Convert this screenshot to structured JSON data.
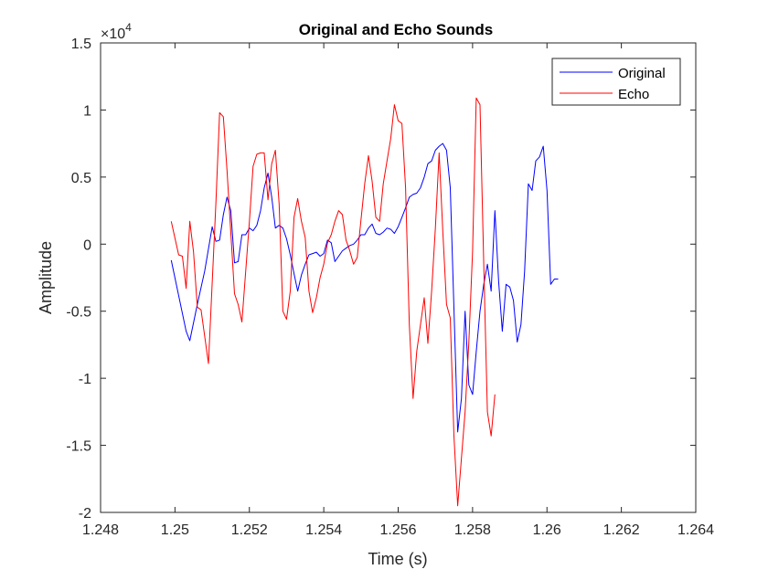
{
  "chart_data": {
    "type": "line",
    "title": "Original and Echo Sounds",
    "xlabel": "Time (s)",
    "ylabel": "Amplitude",
    "xlim": [
      1.248,
      1.264
    ],
    "ylim": [
      -20000,
      15000
    ],
    "y_exponent_label": "×10",
    "y_exponent_power": "4",
    "x_ticks": [
      1.248,
      1.25,
      1.252,
      1.254,
      1.256,
      1.258,
      1.26,
      1.262,
      1.264
    ],
    "x_tick_labels": [
      "1.248",
      "1.25",
      "1.252",
      "1.254",
      "1.256",
      "1.258",
      "1.26",
      "1.262",
      "1.264"
    ],
    "y_ticks": [
      -20000,
      -15000,
      -10000,
      -5000,
      0,
      5000,
      10000,
      15000
    ],
    "y_tick_labels": [
      "-2",
      "-1.5",
      "-1",
      "-0.5",
      "0",
      "0.5",
      "1",
      "1.5"
    ],
    "grid": false,
    "legend": "top-right",
    "series": [
      {
        "name": "Original",
        "color": "#0000ff",
        "points": [
          [
            1.2499,
            -1200
          ],
          [
            1.2503,
            -6500
          ],
          [
            1.2504,
            -7200
          ],
          [
            1.2506,
            -4500
          ],
          [
            1.2508,
            -2000
          ],
          [
            1.251,
            1300
          ],
          [
            1.2511,
            200
          ],
          [
            1.2512,
            300
          ],
          [
            1.2513,
            2200
          ],
          [
            1.2514,
            3500
          ],
          [
            1.2515,
            2500
          ],
          [
            1.2516,
            -1400
          ],
          [
            1.2517,
            -1300
          ],
          [
            1.2518,
            700
          ],
          [
            1.2519,
            700
          ],
          [
            1.252,
            1200
          ],
          [
            1.2521,
            1000
          ],
          [
            1.2522,
            1400
          ],
          [
            1.2523,
            2500
          ],
          [
            1.2524,
            4200
          ],
          [
            1.2525,
            5300
          ],
          [
            1.2526,
            3500
          ],
          [
            1.2527,
            1200
          ],
          [
            1.2528,
            1400
          ],
          [
            1.2529,
            1200
          ],
          [
            1.253,
            400
          ],
          [
            1.2531,
            -800
          ],
          [
            1.2532,
            -2200
          ],
          [
            1.2533,
            -3500
          ],
          [
            1.2534,
            -2300
          ],
          [
            1.2535,
            -1500
          ],
          [
            1.2536,
            -800
          ],
          [
            1.2537,
            -700
          ],
          [
            1.2538,
            -600
          ],
          [
            1.2539,
            -900
          ],
          [
            1.254,
            -700
          ],
          [
            1.2541,
            300
          ],
          [
            1.2542,
            100
          ],
          [
            1.2543,
            -1300
          ],
          [
            1.2544,
            -900
          ],
          [
            1.2545,
            -500
          ],
          [
            1.2546,
            -300
          ],
          [
            1.2547,
            -100
          ],
          [
            1.2548,
            0
          ],
          [
            1.2549,
            300
          ],
          [
            1.255,
            700
          ],
          [
            1.2551,
            700
          ],
          [
            1.2552,
            1200
          ],
          [
            1.2553,
            1500
          ],
          [
            1.2554,
            800
          ],
          [
            1.2555,
            700
          ],
          [
            1.2556,
            900
          ],
          [
            1.2557,
            1200
          ],
          [
            1.2558,
            1100
          ],
          [
            1.2559,
            800
          ],
          [
            1.256,
            1300
          ],
          [
            1.2561,
            2000
          ],
          [
            1.2562,
            2700
          ],
          [
            1.2563,
            3500
          ],
          [
            1.2564,
            3700
          ],
          [
            1.2565,
            3800
          ],
          [
            1.2566,
            4200
          ],
          [
            1.2567,
            5000
          ],
          [
            1.2568,
            6000
          ],
          [
            1.2569,
            6200
          ],
          [
            1.257,
            7000
          ],
          [
            1.2571,
            7300
          ],
          [
            1.2572,
            7500
          ],
          [
            1.2573,
            7000
          ],
          [
            1.2574,
            4200
          ],
          [
            1.2576,
            -14000
          ],
          [
            1.2577,
            -11500
          ],
          [
            1.2578,
            -5000
          ],
          [
            1.2579,
            -10500
          ],
          [
            1.258,
            -11200
          ],
          [
            1.2581,
            -8000
          ],
          [
            1.2582,
            -5000
          ],
          [
            1.2583,
            -3000
          ],
          [
            1.2584,
            -1500
          ],
          [
            1.2585,
            -3500
          ],
          [
            1.2586,
            2500
          ],
          [
            1.2587,
            -2800
          ],
          [
            1.2588,
            -6500
          ],
          [
            1.2589,
            -3000
          ],
          [
            1.259,
            -3200
          ],
          [
            1.2591,
            -4200
          ],
          [
            1.2592,
            -7300
          ],
          [
            1.2593,
            -6000
          ],
          [
            1.2594,
            -2000
          ],
          [
            1.2595,
            4500
          ],
          [
            1.2596,
            4000
          ],
          [
            1.2597,
            6200
          ],
          [
            1.2598,
            6500
          ],
          [
            1.2599,
            7300
          ],
          [
            1.26,
            4000
          ],
          [
            1.2601,
            -3000
          ],
          [
            1.2602,
            -2600
          ],
          [
            1.2603,
            -2600
          ]
        ]
      },
      {
        "name": "Echo",
        "color": "#ff0000",
        "points": [
          [
            1.2499,
            1700
          ],
          [
            1.2501,
            -800
          ],
          [
            1.2502,
            -900
          ],
          [
            1.2503,
            -3300
          ],
          [
            1.2504,
            1700
          ],
          [
            1.2505,
            -600
          ],
          [
            1.2506,
            -4700
          ],
          [
            1.2507,
            -4900
          ],
          [
            1.2509,
            -8900
          ],
          [
            1.2511,
            3000
          ],
          [
            1.2512,
            9800
          ],
          [
            1.2513,
            9500
          ],
          [
            1.2514,
            5500
          ],
          [
            1.2516,
            -3700
          ],
          [
            1.2517,
            -4500
          ],
          [
            1.2518,
            -5800
          ],
          [
            1.252,
            1700
          ],
          [
            1.2521,
            5800
          ],
          [
            1.2522,
            6700
          ],
          [
            1.2523,
            6800
          ],
          [
            1.2524,
            6800
          ],
          [
            1.2525,
            3300
          ],
          [
            1.2526,
            6000
          ],
          [
            1.2527,
            7000
          ],
          [
            1.2528,
            3000
          ],
          [
            1.2529,
            -5000
          ],
          [
            1.253,
            -5600
          ],
          [
            1.2531,
            -3500
          ],
          [
            1.2532,
            2000
          ],
          [
            1.2533,
            3400
          ],
          [
            1.2534,
            1700
          ],
          [
            1.2535,
            500
          ],
          [
            1.2536,
            -3500
          ],
          [
            1.2537,
            -5100
          ],
          [
            1.2538,
            -4000
          ],
          [
            1.2539,
            -2500
          ],
          [
            1.254,
            -1500
          ],
          [
            1.2541,
            100
          ],
          [
            1.2542,
            700
          ],
          [
            1.2543,
            1700
          ],
          [
            1.2544,
            2500
          ],
          [
            1.2545,
            2200
          ],
          [
            1.2546,
            300
          ],
          [
            1.2547,
            -500
          ],
          [
            1.2548,
            -1500
          ],
          [
            1.2549,
            -1000
          ],
          [
            1.255,
            1800
          ],
          [
            1.2551,
            4500
          ],
          [
            1.2552,
            6600
          ],
          [
            1.2553,
            4700
          ],
          [
            1.2554,
            2000
          ],
          [
            1.2555,
            1700
          ],
          [
            1.2556,
            4500
          ],
          [
            1.2557,
            6200
          ],
          [
            1.2558,
            7900
          ],
          [
            1.2559,
            10400
          ],
          [
            1.256,
            9200
          ],
          [
            1.2561,
            9000
          ],
          [
            1.2562,
            4200
          ],
          [
            1.2563,
            -6000
          ],
          [
            1.2564,
            -11500
          ],
          [
            1.2565,
            -8000
          ],
          [
            1.2566,
            -6000
          ],
          [
            1.2567,
            -4000
          ],
          [
            1.2568,
            -7400
          ],
          [
            1.2569,
            -3500
          ],
          [
            1.257,
            1200
          ],
          [
            1.2571,
            6800
          ],
          [
            1.2572,
            1000
          ],
          [
            1.2573,
            -4500
          ],
          [
            1.2574,
            -5500
          ],
          [
            1.2575,
            -14300
          ],
          [
            1.2576,
            -19500
          ],
          [
            1.2578,
            -12500
          ],
          [
            1.2579,
            -7300
          ],
          [
            1.258,
            -500
          ],
          [
            1.2581,
            10900
          ],
          [
            1.2582,
            10400
          ],
          [
            1.2583,
            -1500
          ],
          [
            1.2584,
            -12500
          ],
          [
            1.2585,
            -14300
          ],
          [
            1.2586,
            -11200
          ]
        ]
      }
    ]
  }
}
